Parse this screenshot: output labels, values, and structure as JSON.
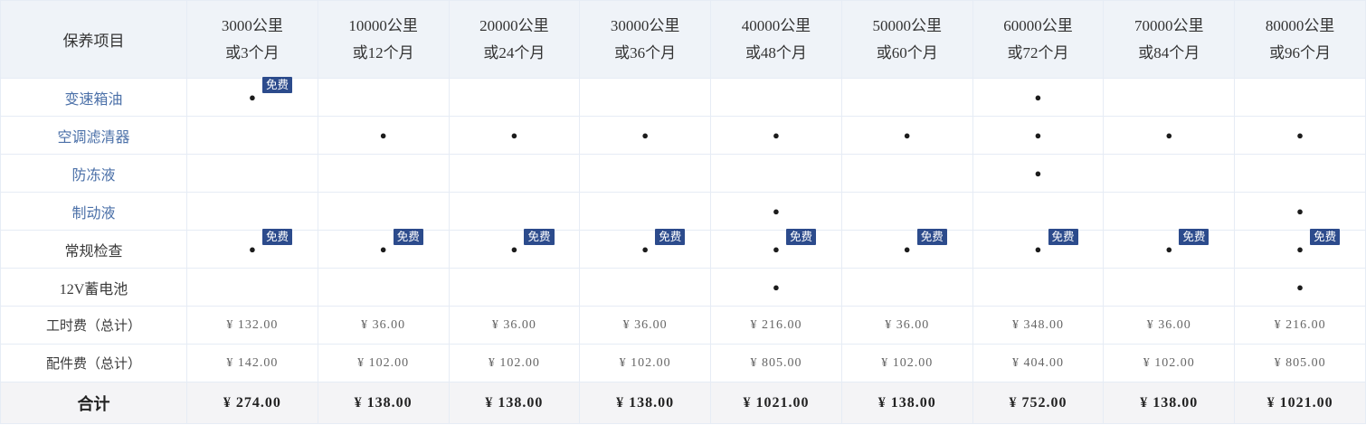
{
  "colors": {
    "header_bg": "#eff3f8",
    "border": "#e6ecf5",
    "link_text": "#4b70a8",
    "badge_bg": "#2c4b8c",
    "total_row_bg": "#f4f4f6"
  },
  "table": {
    "corner_label": "保养项目",
    "free_badge_label": "免费",
    "columns": [
      {
        "mileage": "3000公里",
        "interval": "或3个月"
      },
      {
        "mileage": "10000公里",
        "interval": "或12个月"
      },
      {
        "mileage": "20000公里",
        "interval": "或24个月"
      },
      {
        "mileage": "30000公里",
        "interval": "或36个月"
      },
      {
        "mileage": "40000公里",
        "interval": "或48个月"
      },
      {
        "mileage": "50000公里",
        "interval": "或60个月"
      },
      {
        "mileage": "60000公里",
        "interval": "或72个月"
      },
      {
        "mileage": "70000公里",
        "interval": "或84个月"
      },
      {
        "mileage": "80000公里",
        "interval": "或96个月"
      }
    ],
    "item_rows": [
      {
        "label": "变速箱油",
        "link": true,
        "cells": [
          "dot+free",
          "",
          "",
          "",
          "",
          "",
          "dot",
          "",
          ""
        ]
      },
      {
        "label": "空调滤清器",
        "link": true,
        "cells": [
          "",
          "dot",
          "dot",
          "dot",
          "dot",
          "dot",
          "dot",
          "dot",
          "dot"
        ]
      },
      {
        "label": "防冻液",
        "link": true,
        "cells": [
          "",
          "",
          "",
          "",
          "",
          "",
          "dot",
          "",
          ""
        ]
      },
      {
        "label": "制动液",
        "link": true,
        "cells": [
          "",
          "",
          "",
          "",
          "dot",
          "",
          "",
          "",
          "dot"
        ]
      },
      {
        "label": "常规检查",
        "link": false,
        "cells": [
          "dot+free",
          "dot+free",
          "dot+free",
          "dot+free",
          "dot+free",
          "dot+free",
          "dot+free",
          "dot+free",
          "dot+free"
        ]
      },
      {
        "label": "12V蓄电池",
        "link": false,
        "cells": [
          "",
          "",
          "",
          "",
          "dot",
          "",
          "",
          "",
          "dot"
        ]
      }
    ],
    "fee_rows": [
      {
        "label": "工时费（总计）",
        "values": [
          "¥ 132.00",
          "¥ 36.00",
          "¥ 36.00",
          "¥ 36.00",
          "¥ 216.00",
          "¥ 36.00",
          "¥ 348.00",
          "¥ 36.00",
          "¥ 216.00"
        ]
      },
      {
        "label": "配件费（总计）",
        "values": [
          "¥ 142.00",
          "¥ 102.00",
          "¥ 102.00",
          "¥ 102.00",
          "¥ 805.00",
          "¥ 102.00",
          "¥ 404.00",
          "¥ 102.00",
          "¥ 805.00"
        ]
      }
    ],
    "total_row": {
      "label": "合计",
      "values": [
        "¥ 274.00",
        "¥ 138.00",
        "¥ 138.00",
        "¥ 138.00",
        "¥ 1021.00",
        "¥ 138.00",
        "¥ 752.00",
        "¥ 138.00",
        "¥ 1021.00"
      ]
    }
  }
}
